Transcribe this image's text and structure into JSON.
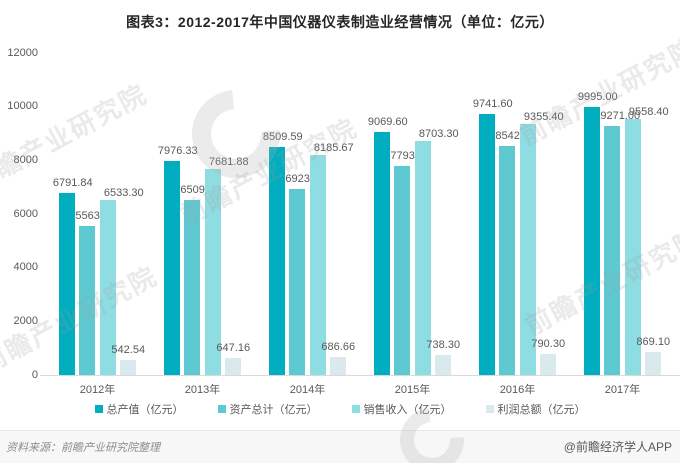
{
  "title": "图表3：2012-2017年中国仪器仪表制造业经营情况（单位：亿元）",
  "chart_data": {
    "type": "bar",
    "categories": [
      "2012年",
      "2013年",
      "2014年",
      "2015年",
      "2016年",
      "2017年"
    ],
    "series": [
      {
        "name": "总产值（亿元）",
        "color": "#00AEBF",
        "values": [
          6791.84,
          7976.33,
          8509.59,
          9069.6,
          9741.6,
          9995.0
        ]
      },
      {
        "name": "资产总计（亿元）",
        "color": "#5FC9D2",
        "values": [
          5563.01,
          6509.13,
          6923.78,
          7793.6,
          8542.4,
          9271.0
        ]
      },
      {
        "name": "销售收入（亿元）",
        "color": "#8EDDE3",
        "values": [
          6533.3,
          7681.88,
          8185.67,
          8703.3,
          9355.4,
          9558.4
        ]
      },
      {
        "name": "利润总额（亿元）",
        "color": "#D9E9ED",
        "values": [
          542.54,
          647.16,
          686.66,
          738.3,
          790.3,
          869.1
        ]
      }
    ],
    "title": "图表3：2012-2017年中国仪器仪表制造业经营情况（单位：亿元）",
    "xlabel": "",
    "ylabel": "",
    "ylim": [
      0,
      12000
    ],
    "ytick_step": 2000,
    "yticks": [
      0,
      2000,
      4000,
      6000,
      8000,
      10000,
      12000
    ],
    "grid": false,
    "legend_position": "bottom",
    "value_labels_decimals": 2
  },
  "footer": {
    "source": "资料来源：前瞻产业研究院整理",
    "credit": "@前瞻经济学人APP"
  },
  "watermark": {
    "text": "前瞻产业研究院",
    "ring_icon": "qianzhan-logo-ring"
  },
  "colors": {
    "axis_line": "#d9d9d9",
    "label_text": "#595959",
    "title_text": "#262626"
  }
}
